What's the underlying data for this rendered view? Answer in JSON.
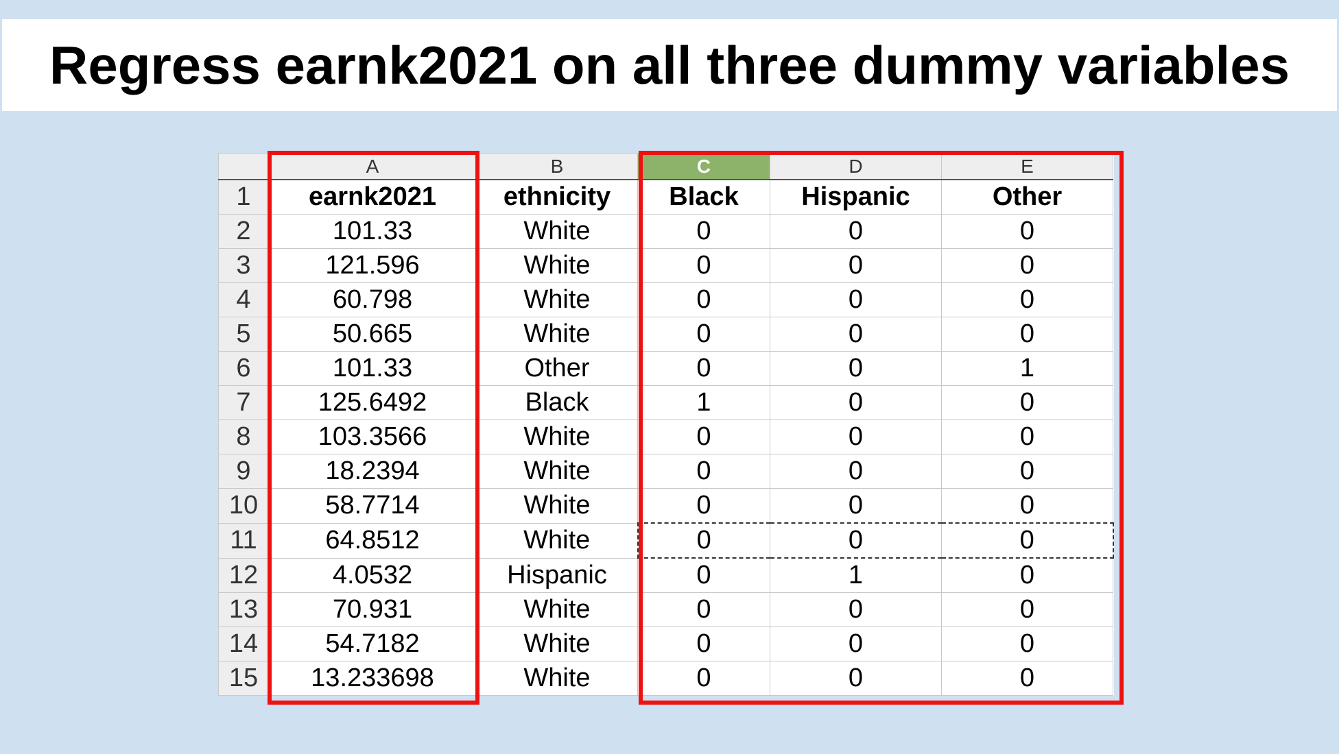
{
  "title": "Regress earnk2021 on all three dummy variables",
  "spreadsheet": {
    "column_letters": [
      "A",
      "B",
      "C",
      "D",
      "E"
    ],
    "active_column": "C",
    "rows": [
      {
        "num": "1",
        "cells": [
          "earnk2021",
          "ethnicity",
          "Black",
          "Hispanic",
          "Other"
        ]
      },
      {
        "num": "2",
        "cells": [
          "101.33",
          "White",
          "0",
          "0",
          "0"
        ]
      },
      {
        "num": "3",
        "cells": [
          "121.596",
          "White",
          "0",
          "0",
          "0"
        ]
      },
      {
        "num": "4",
        "cells": [
          "60.798",
          "White",
          "0",
          "0",
          "0"
        ]
      },
      {
        "num": "5",
        "cells": [
          "50.665",
          "White",
          "0",
          "0",
          "0"
        ]
      },
      {
        "num": "6",
        "cells": [
          "101.33",
          "Other",
          "0",
          "0",
          "1"
        ]
      },
      {
        "num": "7",
        "cells": [
          "125.6492",
          "Black",
          "1",
          "0",
          "0"
        ]
      },
      {
        "num": "8",
        "cells": [
          "103.3566",
          "White",
          "0",
          "0",
          "0"
        ]
      },
      {
        "num": "9",
        "cells": [
          "18.2394",
          "White",
          "0",
          "0",
          "0"
        ]
      },
      {
        "num": "10",
        "cells": [
          "58.7714",
          "White",
          "0",
          "0",
          "0"
        ]
      },
      {
        "num": "11",
        "cells": [
          "64.8512",
          "White",
          "0",
          "0",
          "0"
        ]
      },
      {
        "num": "12",
        "cells": [
          "4.0532",
          "Hispanic",
          "0",
          "1",
          "0"
        ]
      },
      {
        "num": "13",
        "cells": [
          "70.931",
          "White",
          "0",
          "0",
          "0"
        ]
      },
      {
        "num": "14",
        "cells": [
          "54.7182",
          "White",
          "0",
          "0",
          "0"
        ]
      },
      {
        "num": "15",
        "cells": [
          "13.233698",
          "White",
          "0",
          "0",
          "0"
        ]
      }
    ]
  },
  "colors": {
    "background": "#cfe0f1",
    "highlight_border": "#ee1111",
    "active_column_header": "#8db36a"
  }
}
